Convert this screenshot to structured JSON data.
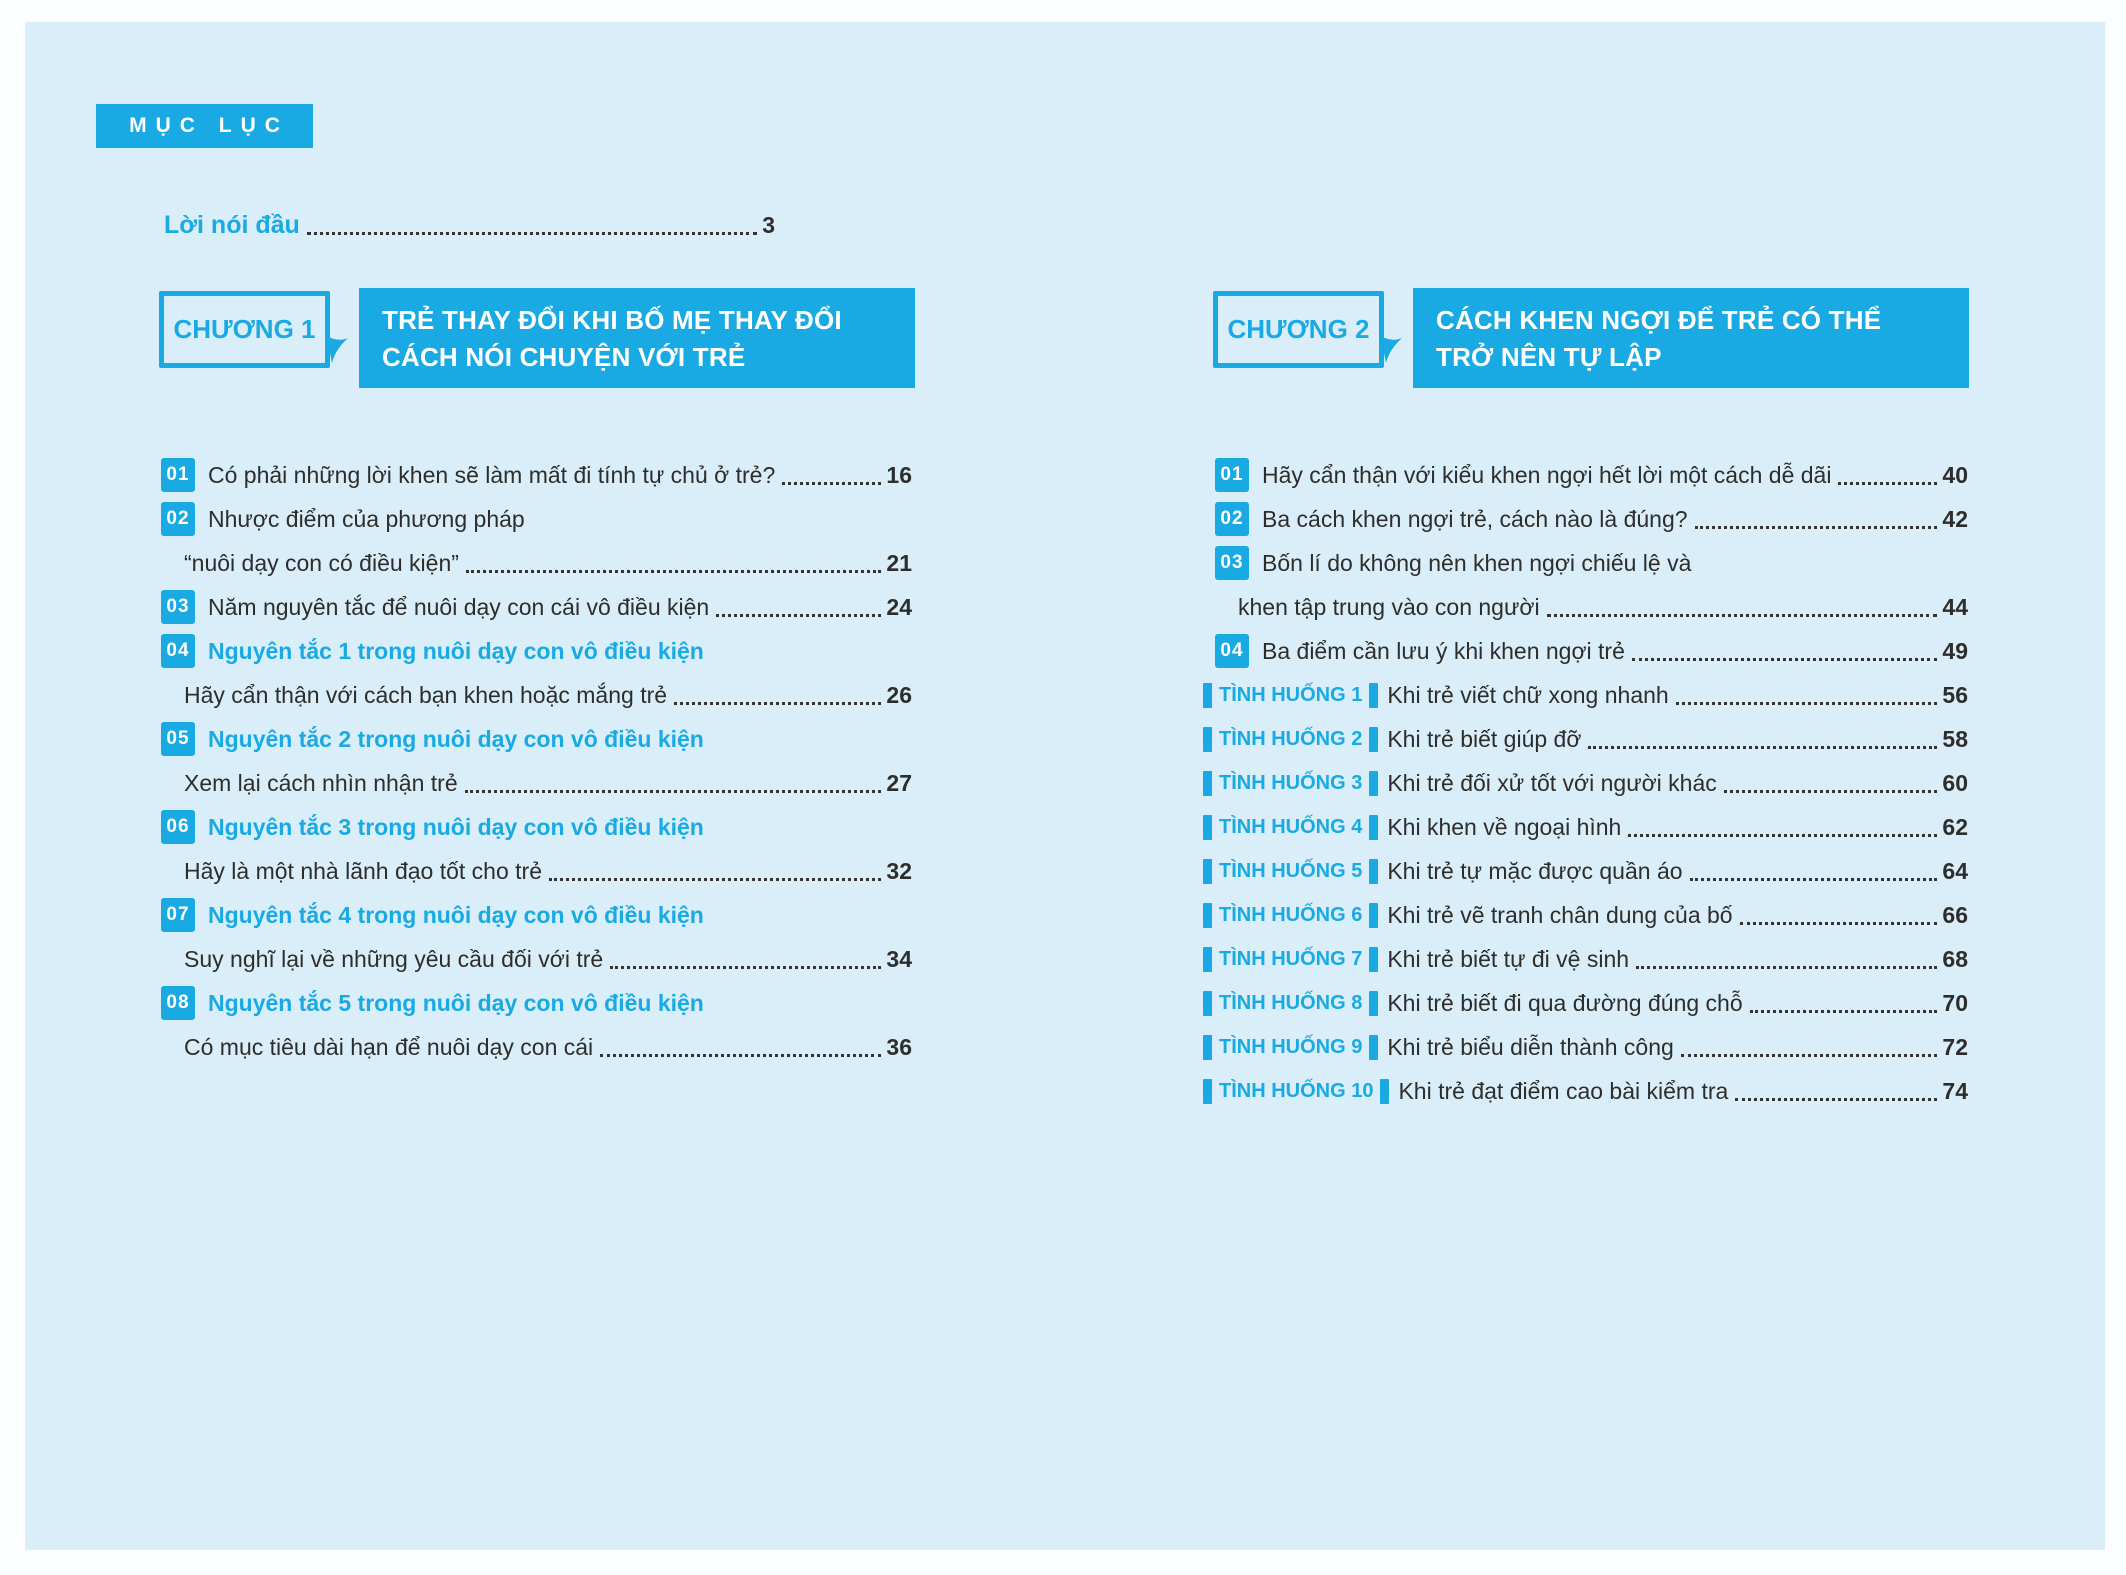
{
  "colors": {
    "accent": "#19a9e3",
    "page_bg": "#d9eef8",
    "text": "#2e2d2c"
  },
  "header": {
    "toc_label": "MỤC LỤC"
  },
  "preface": {
    "label": "Lời nói đầu",
    "page": "3"
  },
  "chapters": [
    {
      "badge": "CHƯƠNG 1",
      "title_line1": "TRẺ THAY ĐỔI KHI BỐ MẸ THAY ĐỔI",
      "title_line2": "CÁCH NÓI CHUYỆN VỚI TRẺ"
    },
    {
      "badge": "CHƯƠNG 2",
      "title_line1": "CÁCH KHEN NGỢI ĐỂ TRẺ CÓ THỂ",
      "title_line2": "TRỞ NÊN TỰ LẬP"
    }
  ],
  "left_rows": [
    {
      "type": "entry",
      "badge": "01",
      "text": "Có phải những lời khen sẽ làm mất đi tính tự chủ ở trẻ?",
      "page": "16"
    },
    {
      "type": "entry",
      "badge": "02",
      "text": "Nhược điểm của phương pháp"
    },
    {
      "type": "cont",
      "text": "“nuôi dạy con có điều kiện”",
      "page": "21"
    },
    {
      "type": "entry",
      "badge": "03",
      "text": "Năm nguyên tắc để nuôi dạy con cái vô điều kiện",
      "page": "24"
    },
    {
      "type": "heading",
      "badge": "04",
      "text": "Nguyên tắc 1 trong nuôi dạy con vô điều kiện"
    },
    {
      "type": "cont",
      "text": "Hãy cẩn thận với cách bạn khen hoặc mắng trẻ",
      "page": "26"
    },
    {
      "type": "heading",
      "badge": "05",
      "text": "Nguyên tắc 2 trong nuôi dạy con vô điều kiện"
    },
    {
      "type": "cont",
      "text": "Xem lại cách nhìn nhận trẻ",
      "page": "27"
    },
    {
      "type": "heading",
      "badge": "06",
      "text": "Nguyên tắc 3 trong nuôi dạy con vô điều kiện"
    },
    {
      "type": "cont",
      "text": "Hãy là một nhà lãnh đạo tốt cho trẻ",
      "page": "32"
    },
    {
      "type": "heading",
      "badge": "07",
      "text": "Nguyên tắc 4 trong nuôi dạy con vô điều kiện"
    },
    {
      "type": "cont",
      "text": "Suy nghĩ lại về những yêu cầu đối với trẻ",
      "page": "34"
    },
    {
      "type": "heading",
      "badge": "08",
      "text": "Nguyên tắc 5 trong nuôi dạy con vô điều kiện"
    },
    {
      "type": "cont",
      "text": "Có mục tiêu dài hạn để nuôi dạy con cái",
      "page": "36"
    }
  ],
  "right_rows": [
    {
      "type": "entry",
      "badge": "01",
      "text": "Hãy cẩn thận với kiểu khen ngợi hết lời một cách dễ dãi",
      "page": "40"
    },
    {
      "type": "entry",
      "badge": "02",
      "text": "Ba cách khen ngợi trẻ, cách nào là đúng?",
      "page": "42"
    },
    {
      "type": "entry",
      "badge": "03",
      "text": "Bốn lí do không nên khen ngợi chiếu lệ và"
    },
    {
      "type": "cont",
      "text": "khen tập trung vào con người",
      "page": "44"
    },
    {
      "type": "entry",
      "badge": "04",
      "text": "Ba điểm cần lưu ý khi khen ngợi trẻ",
      "page": "49"
    },
    {
      "type": "scenario",
      "tag": "TÌNH HUỐNG 1",
      "text": "Khi trẻ viết chữ xong nhanh",
      "page": "56"
    },
    {
      "type": "scenario",
      "tag": "TÌNH HUỐNG 2",
      "text": "Khi trẻ biết giúp đỡ",
      "page": "58"
    },
    {
      "type": "scenario",
      "tag": "TÌNH HUỐNG 3",
      "text": "Khi trẻ đối xử tốt với người khác",
      "page": "60"
    },
    {
      "type": "scenario",
      "tag": "TÌNH HUỐNG 4",
      "text": "Khi khen về ngoại hình",
      "page": "62"
    },
    {
      "type": "scenario",
      "tag": "TÌNH HUỐNG 5",
      "text": "Khi trẻ tự mặc được quần áo",
      "page": "64"
    },
    {
      "type": "scenario",
      "tag": "TÌNH HUỐNG 6",
      "text": "Khi trẻ vẽ tranh chân dung của bố",
      "page": "66"
    },
    {
      "type": "scenario",
      "tag": "TÌNH HUỐNG 7",
      "text": "Khi trẻ biết tự đi vệ sinh",
      "page": "68"
    },
    {
      "type": "scenario",
      "tag": "TÌNH HUỐNG 8",
      "text": "Khi trẻ biết đi qua đường đúng chỗ",
      "page": "70"
    },
    {
      "type": "scenario",
      "tag": "TÌNH HUỐNG 9",
      "text": "Khi trẻ biểu diễn thành công",
      "page": "72"
    },
    {
      "type": "scenario",
      "tag": "TÌNH HUỐNG 10",
      "text": "Khi trẻ đạt điểm cao bài kiểm tra",
      "page": "74"
    }
  ]
}
